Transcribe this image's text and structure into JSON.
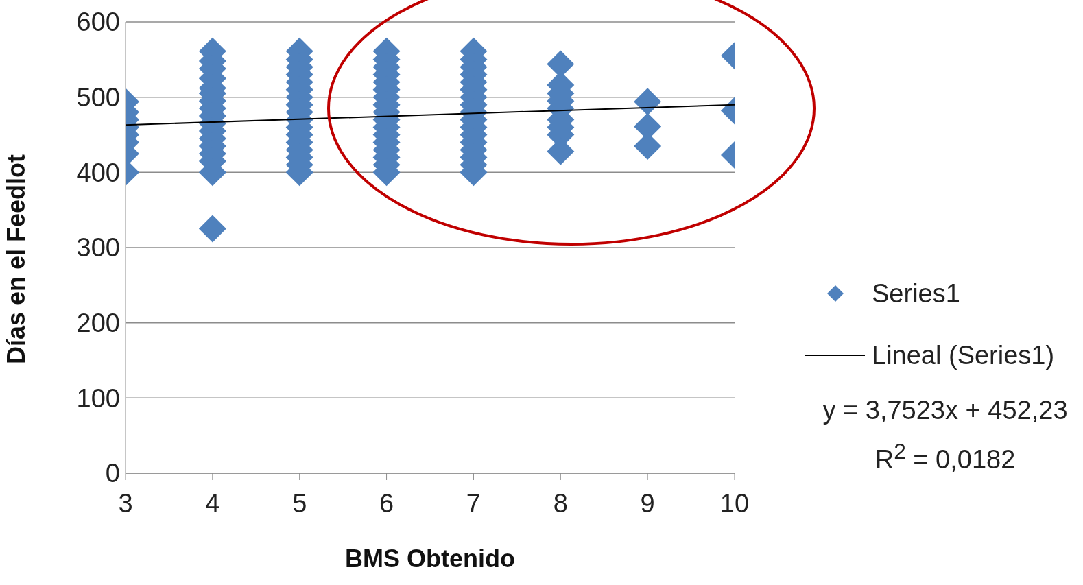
{
  "chart_data": {
    "type": "scatter",
    "xlabel": "BMS Obtenido",
    "ylabel": "Días en el Feedlot",
    "xlim": [
      3,
      10
    ],
    "xticks": [
      3,
      4,
      5,
      6,
      7,
      8,
      9,
      10
    ],
    "ylim": [
      0,
      600
    ],
    "yticks": [
      0,
      100,
      200,
      300,
      400,
      500,
      600
    ],
    "grid": "y",
    "legend": "right",
    "series": [
      {
        "name": "Series1",
        "color": "#4f81bd",
        "marker": "diamond",
        "x": [
          3,
          3,
          3,
          3,
          3,
          3,
          3,
          3,
          4,
          4,
          4,
          4,
          4,
          4,
          4,
          4,
          4,
          4,
          4,
          4,
          4,
          4,
          4,
          4,
          4,
          5,
          5,
          5,
          5,
          5,
          5,
          5,
          5,
          5,
          5,
          5,
          5,
          5,
          5,
          5,
          5,
          5,
          6,
          6,
          6,
          6,
          6,
          6,
          6,
          6,
          6,
          6,
          6,
          6,
          6,
          6,
          6,
          6,
          6,
          7,
          7,
          7,
          7,
          7,
          7,
          7,
          7,
          7,
          7,
          7,
          7,
          7,
          7,
          7,
          7,
          7,
          8,
          8,
          8,
          8,
          8,
          8,
          8,
          8,
          8,
          9,
          9,
          9,
          10,
          10,
          10
        ],
        "values": [
          494,
          480,
          470,
          460,
          450,
          440,
          425,
          400,
          561,
          548,
          538,
          525,
          512,
          505,
          495,
          485,
          475,
          465,
          455,
          445,
          435,
          425,
          415,
          400,
          325,
          561,
          550,
          540,
          530,
          520,
          510,
          500,
          490,
          480,
          470,
          460,
          450,
          440,
          430,
          420,
          410,
          400,
          561,
          550,
          540,
          530,
          520,
          510,
          500,
          490,
          480,
          470,
          460,
          450,
          440,
          430,
          420,
          410,
          400,
          561,
          550,
          540,
          530,
          520,
          510,
          500,
          490,
          480,
          470,
          460,
          450,
          440,
          430,
          420,
          410,
          400,
          544,
          516,
          505,
          495,
          485,
          470,
          460,
          450,
          428,
          494,
          461,
          435,
          555,
          482,
          423
        ]
      },
      {
        "name": "Lineal (Series1)",
        "type": "line",
        "color": "#000000",
        "marker": "none",
        "line_style": "solid",
        "x": [
          3,
          10
        ],
        "values": [
          463,
          490
        ]
      }
    ],
    "annotations": [
      "y = 3,7523x + 452,23",
      "R$^{2}$ = 0,0182"
    ]
  }
}
